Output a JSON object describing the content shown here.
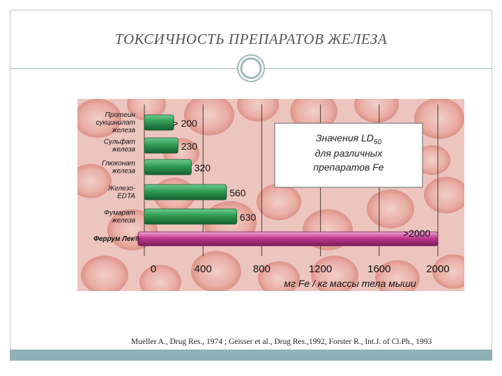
{
  "slide": {
    "title": "ТОКСИЧНОСТЬ ПРЕПАРАТОВ ЖЕЛЕЗА",
    "citation": "Mueller A., Drug Res., 1974 ; Geisser et al., Drug Res.,1992, Forster R., Int.J. of Cl.Ph., 1993"
  },
  "chart_data": {
    "type": "bar",
    "orientation": "horizontal",
    "xlabel": "мг Fe / кг массы тела мыши",
    "xlim": [
      0,
      2000
    ],
    "xticks": [
      "0",
      "400",
      "800",
      "1200",
      "1600",
      "2000"
    ],
    "xtick_values": [
      0,
      400,
      800,
      1200,
      1600,
      2000
    ],
    "grid": true,
    "annotation": {
      "line1": "Значения LD",
      "subscript": "50",
      "line2": "для различных",
      "line3": "препаратов Fe"
    },
    "categories": [
      {
        "lines": [
          "Протеин",
          "сукцинилат",
          "железа"
        ],
        "value": 200,
        "label": "> 200",
        "color": "#2f9a55",
        "highlight": false
      },
      {
        "lines": [
          "Сульфат",
          "железа"
        ],
        "value": 230,
        "label": "230",
        "color": "#2f9a55",
        "highlight": false
      },
      {
        "lines": [
          "Глюконат",
          "железа"
        ],
        "value": 320,
        "label": "320",
        "color": "#2f9a55",
        "highlight": false
      },
      {
        "lines": [
          "Железо-",
          "EDTA"
        ],
        "value": 560,
        "label": "560",
        "color": "#2f9a55",
        "highlight": false
      },
      {
        "lines": [
          "Фумарат",
          "железа"
        ],
        "value": 630,
        "label": "630",
        "color": "#2f9a55",
        "highlight": false
      },
      {
        "lines": [
          "Феррум Лек®"
        ],
        "value": 2000,
        "label": ">2000",
        "color": "#c0388f",
        "highlight": true
      }
    ],
    "colors": {
      "bar_green": "#2f9a55",
      "bar_magenta": "#c0388f",
      "highlight_label": "#c4201c",
      "background": "#e9b9b2"
    }
  }
}
